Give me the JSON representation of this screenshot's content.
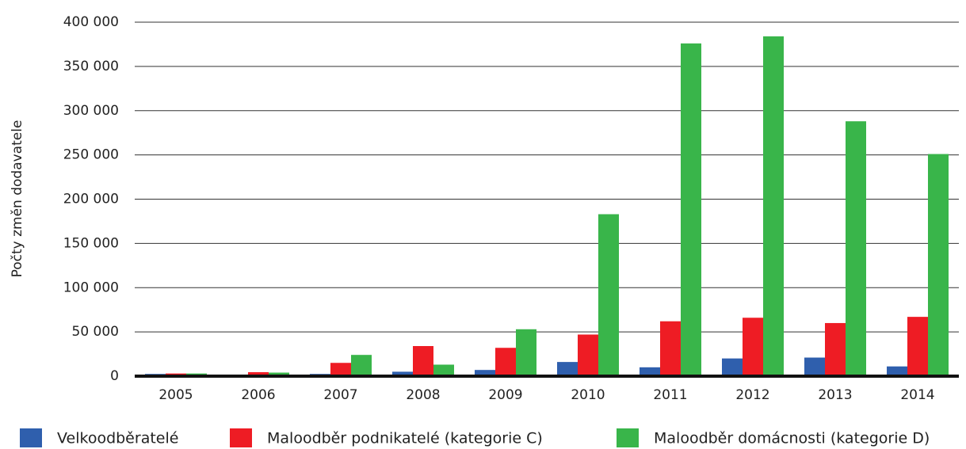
{
  "chart_data": {
    "type": "bar",
    "y_label": "Počty změn dodavatele",
    "categories": [
      "2005",
      "2006",
      "2007",
      "2008",
      "2009",
      "2010",
      "2011",
      "2012",
      "2013",
      "2014"
    ],
    "series": [
      {
        "name": "Velkoodběratelé",
        "color": "#2f5fad",
        "values": [
          2500,
          1500,
          2500,
          5000,
          7000,
          16000,
          10000,
          20000,
          21000,
          11000
        ]
      },
      {
        "name": "Maloodběr podnikatelé (kategorie C)",
        "color": "#ee1c24",
        "values": [
          3000,
          4500,
          15000,
          34000,
          32000,
          47000,
          62000,
          66000,
          60000,
          67000
        ]
      },
      {
        "name": "Maloodběr domácnosti (kategorie D)",
        "color": "#39b54a",
        "values": [
          3000,
          4000,
          24000,
          13000,
          53000,
          183000,
          376000,
          384000,
          288000,
          251000
        ]
      }
    ],
    "ylim": [
      0,
      400000
    ],
    "yticks": [
      0,
      {
        "value": 50000,
        "label": "50 000"
      },
      {
        "value": 100000,
        "label": "100 000"
      },
      {
        "value": 150000,
        "label": "150 000"
      },
      {
        "value": 200000,
        "label": "200 000"
      },
      {
        "value": 250000,
        "label": "250 000"
      },
      {
        "value": 300000,
        "label": "300 000"
      },
      {
        "value": 350000,
        "label": "350 000"
      },
      {
        "value": 400000,
        "label": "400 000"
      }
    ],
    "grid": true,
    "legend": "bottom"
  }
}
